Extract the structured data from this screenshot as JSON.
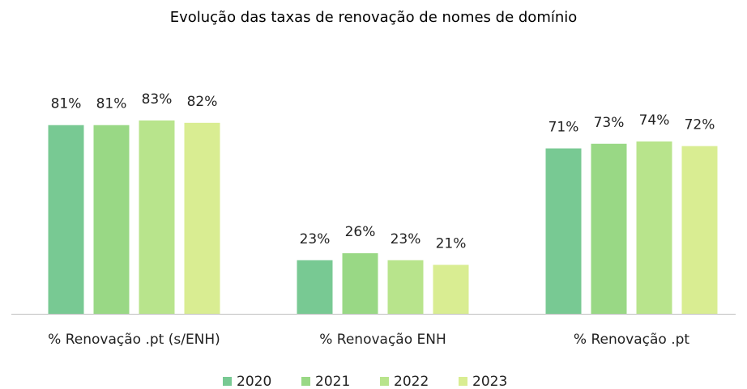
{
  "chart_data": {
    "type": "bar",
    "title": "Evolução das taxas de renovação de nomes de domínio",
    "categories": [
      "% Renovação .pt (s/ENH)",
      "% Renovação ENH",
      "% Renovação .pt"
    ],
    "series": [
      {
        "name": "2020",
        "color": "#78c993",
        "values": [
          81,
          23,
          71
        ],
        "value_labels": [
          "81%",
          "23%",
          "71%"
        ]
      },
      {
        "name": "2021",
        "color": "#99d885",
        "values": [
          81,
          26,
          73
        ],
        "value_labels": [
          "81%",
          "26%",
          "73%"
        ]
      },
      {
        "name": "2022",
        "color": "#b8e48c",
        "values": [
          83,
          23,
          74
        ],
        "value_labels": [
          "83%",
          "23%",
          "74%"
        ]
      },
      {
        "name": "2023",
        "color": "#d9ed92",
        "values": [
          82,
          21,
          72
        ],
        "value_labels": [
          "82%",
          "21%",
          "72%"
        ]
      }
    ],
    "legend": "bottom"
  }
}
